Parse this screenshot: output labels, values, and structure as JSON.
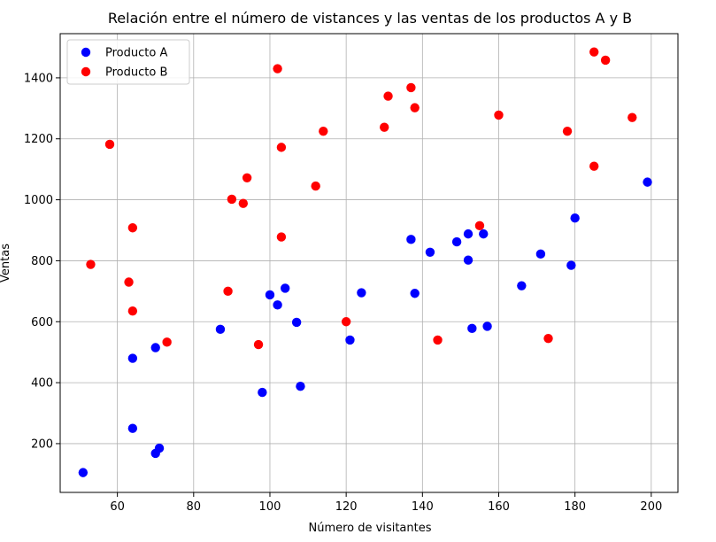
{
  "chart_data": {
    "type": "scatter",
    "title": "Relación entre el número de vistances y las ventas de los productos A y B",
    "xlabel": "Número de visitantes",
    "ylabel": "Ventas",
    "xlim": [
      45,
      207
    ],
    "ylim": [
      40,
      1545
    ],
    "xticks": [
      60,
      80,
      100,
      120,
      140,
      160,
      180,
      200
    ],
    "yticks": [
      200,
      400,
      600,
      800,
      1000,
      1200,
      1400
    ],
    "grid": true,
    "legend_position": "top-left",
    "series": [
      {
        "name": "Producto A",
        "color": "#0000ff",
        "points": [
          [
            51,
            105
          ],
          [
            64,
            250
          ],
          [
            64,
            480
          ],
          [
            70,
            515
          ],
          [
            70,
            168
          ],
          [
            71,
            185
          ],
          [
            87,
            575
          ],
          [
            98,
            368
          ],
          [
            100,
            688
          ],
          [
            102,
            655
          ],
          [
            104,
            710
          ],
          [
            107,
            598
          ],
          [
            108,
            388
          ],
          [
            121,
            540
          ],
          [
            124,
            695
          ],
          [
            137,
            870
          ],
          [
            138,
            693
          ],
          [
            142,
            828
          ],
          [
            149,
            862
          ],
          [
            152,
            888
          ],
          [
            152,
            802
          ],
          [
            153,
            578
          ],
          [
            156,
            888
          ],
          [
            157,
            585
          ],
          [
            166,
            718
          ],
          [
            171,
            822
          ],
          [
            179,
            785
          ],
          [
            180,
            940
          ],
          [
            199,
            1058
          ]
        ]
      },
      {
        "name": "Producto B",
        "color": "#ff0000",
        "points": [
          [
            53,
            788
          ],
          [
            58,
            1182
          ],
          [
            63,
            730
          ],
          [
            64,
            908
          ],
          [
            64,
            635
          ],
          [
            73,
            533
          ],
          [
            89,
            700
          ],
          [
            90,
            1002
          ],
          [
            93,
            988
          ],
          [
            94,
            1072
          ],
          [
            97,
            525
          ],
          [
            102,
            1430
          ],
          [
            103,
            1172
          ],
          [
            103,
            878
          ],
          [
            112,
            1045
          ],
          [
            114,
            1225
          ],
          [
            120,
            600
          ],
          [
            130,
            1238
          ],
          [
            131,
            1340
          ],
          [
            137,
            1368
          ],
          [
            138,
            1302
          ],
          [
            144,
            540
          ],
          [
            155,
            915
          ],
          [
            160,
            1278
          ],
          [
            173,
            545
          ],
          [
            178,
            1225
          ],
          [
            185,
            1485
          ],
          [
            185,
            1110
          ],
          [
            188,
            1458
          ],
          [
            195,
            1270
          ]
        ]
      }
    ]
  }
}
